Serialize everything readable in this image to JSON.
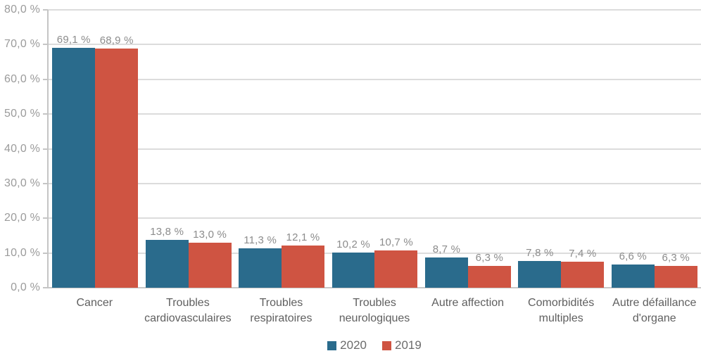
{
  "chart": {
    "colors": {
      "series_2020": "#2a6b8c",
      "series_2019": "#cf5442",
      "gridline": "#dcdcdc",
      "axis": "#c5c5c5",
      "tick_label": "#9b9b9b",
      "value_label": "#8c8c8c",
      "category_label": "#5f5f5f",
      "legend_label": "#6b6b6b",
      "background": "#ffffff"
    }
  },
  "chart_data": {
    "type": "bar",
    "title": "",
    "xlabel": "",
    "ylabel": "",
    "grid": true,
    "legend_position": "bottom",
    "ylim": [
      0,
      80
    ],
    "categories": [
      "Cancer",
      "Troubles cardiovasculaires",
      "Troubles respiratoires",
      "Troubles neurologiques",
      "Autre affection",
      "Comorbidités multiples",
      "Autre défaillance d'organe"
    ],
    "series": [
      {
        "name": "2020",
        "color": "#2a6b8c",
        "values": [
          69.1,
          13.8,
          11.3,
          10.2,
          8.7,
          7.8,
          6.6
        ],
        "labels": [
          "69,1 %",
          "13,8 %",
          "11,3 %",
          "10,2 %",
          "8,7 %",
          "7,8 %",
          "6,6 %"
        ]
      },
      {
        "name": "2019",
        "color": "#cf5442",
        "values": [
          68.9,
          13.0,
          12.1,
          10.7,
          6.3,
          7.4,
          6.3
        ],
        "labels": [
          "68,9 %",
          "13,0 %",
          "12,1 %",
          "10,7 %",
          "6,3 %",
          "7,4 %",
          "6,3 %"
        ]
      }
    ],
    "yticks": [
      {
        "value": 0,
        "label": "0,0 %"
      },
      {
        "value": 10,
        "label": "10,0 %"
      },
      {
        "value": 20,
        "label": "20,0 %"
      },
      {
        "value": 30,
        "label": "30,0 %"
      },
      {
        "value": 40,
        "label": "40,0 %"
      },
      {
        "value": 50,
        "label": "50,0 %"
      },
      {
        "value": 60,
        "label": "60,0 %"
      },
      {
        "value": 70,
        "label": "70,0 %"
      },
      {
        "value": 80,
        "label": "80,0 %"
      }
    ]
  }
}
